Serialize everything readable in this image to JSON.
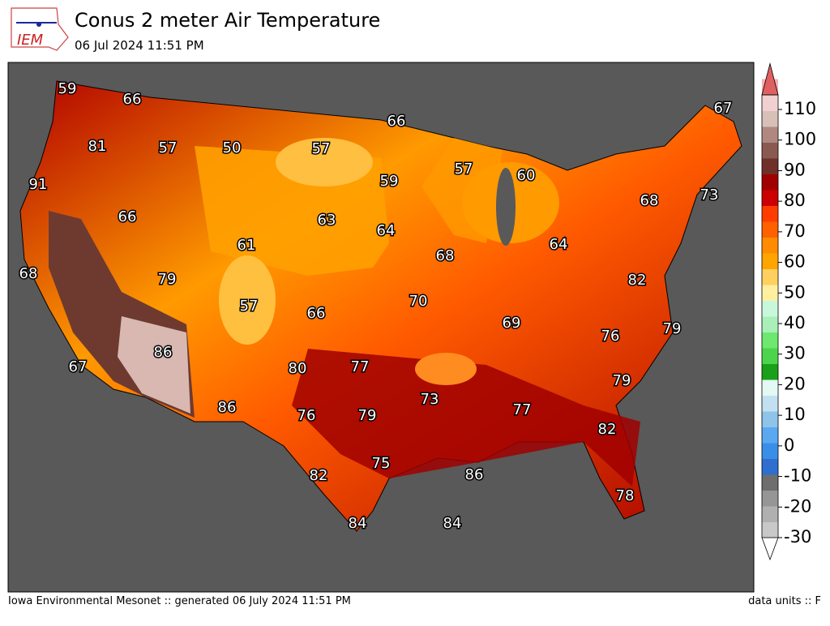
{
  "header": {
    "logo": "IEM",
    "title": "Conus 2 meter Air Temperature",
    "subtitle": "06 Jul 2024 11:51 PM"
  },
  "footer": {
    "left": "Iowa Environmental Mesonet :: generated 06 July 2024 11:51 PM",
    "right": "data units :: F"
  },
  "colorbar": {
    "ticks": [
      -30,
      -20,
      -10,
      0,
      10,
      20,
      30,
      40,
      50,
      60,
      70,
      80,
      90,
      100,
      110
    ],
    "colors": [
      "#dcdcdc",
      "#c8c8c8",
      "#b0b0b0",
      "#969696",
      "#6e6e6e",
      "#2f6fd0",
      "#3a8ee8",
      "#5aa8f0",
      "#8ec3ea",
      "#c2e0f0",
      "#e4f8f4",
      "#1aa01a",
      "#4cd44c",
      "#6ee86e",
      "#a8f0b8",
      "#c8f8dc",
      "#fff0a0",
      "#ffd060",
      "#ffa500",
      "#ff8c00",
      "#ff6000",
      "#ff3c00",
      "#cc0000",
      "#a00000",
      "#6e3028",
      "#8a5a50",
      "#b08880",
      "#d8c0b8",
      "#f0d0d0",
      "#f4b0b0",
      "#e06060"
    ]
  },
  "map": {
    "labels": [
      "59",
      "66",
      "81",
      "57",
      "50",
      "57",
      "66",
      "91",
      "66",
      "63",
      "59",
      "57",
      "60",
      "67",
      "68",
      "73",
      "64",
      "68",
      "64",
      "68",
      "79",
      "61",
      "57",
      "66",
      "70",
      "82",
      "69",
      "76",
      "79",
      "86",
      "67",
      "80",
      "77",
      "73",
      "77",
      "79",
      "86",
      "76",
      "79",
      "82",
      "75",
      "82",
      "86",
      "78",
      "84",
      "84"
    ]
  }
}
